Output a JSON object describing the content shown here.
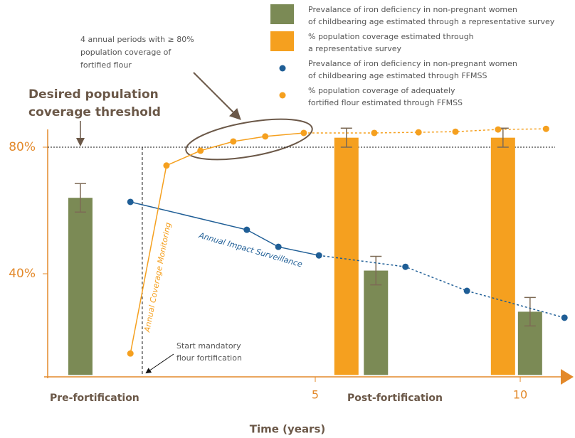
{
  "chart_data": {
    "type": "combo",
    "x_label": "Time (years)",
    "xlim": [
      -1.5,
      11.3
    ],
    "xticks": [
      5,
      10
    ],
    "ylim": [
      8,
      88
    ],
    "yticks": [
      {
        "value": 80,
        "label": "80%"
      },
      {
        "value": 40,
        "label": "40%"
      }
    ],
    "regions": [
      "Pre-fortification",
      "Post-fortification"
    ],
    "threshold": {
      "value": 80,
      "label": [
        "Desired population",
        "coverage threshold"
      ]
    },
    "start": {
      "x": 0.78,
      "label": [
        "Start mandatory",
        "flour fortification"
      ]
    },
    "highlight": [
      "4 annual periods with ≥ 80%",
      "population coverage of",
      "fortified flour"
    ],
    "series": [
      {
        "name": [
          "Prevalance of iron deficiency in non-pregnant women",
          "of childbearing age estimated through a representative survey"
        ],
        "type": "bar",
        "color": "#7b8a55",
        "x": [
          -0.73,
          6.48,
          10.24
        ],
        "values": [
          64,
          41,
          28
        ],
        "errors": [
          4.5,
          4.5,
          4.5
        ]
      },
      {
        "name": [
          "% population coverage estimated through",
          "a representative survey"
        ],
        "type": "bar",
        "color": "#f5a01f",
        "x": [
          5.76,
          9.58
        ],
        "values": [
          83,
          83
        ],
        "errors": [
          3,
          3
        ]
      },
      {
        "name": [
          "Prevalance of iron deficiency in non-pregnant women",
          "of childbearing age estimated through FFMSS"
        ],
        "type": "line",
        "color": "#1f5e96",
        "line_label": "Annual Impact Surveillance",
        "solid_until": 5.1,
        "x": [
          0.49,
          3.33,
          4.1,
          5.09,
          7.2,
          8.7,
          11.08
        ],
        "values": [
          62.7,
          53.9,
          48.5,
          45.8,
          42.2,
          34.6,
          26.1
        ]
      },
      {
        "name": [
          "% population coverage of adequately",
          "fortified flour estimated through FFMSS"
        ],
        "type": "line",
        "color": "#f5a01f",
        "line_label": "Annual Coverage Monitoring",
        "solid_until": 4.8,
        "x": [
          0.49,
          1.37,
          2.2,
          3.0,
          3.78,
          4.72,
          6.44,
          7.52,
          8.42,
          9.46,
          10.63
        ],
        "values": [
          14.8,
          74.2,
          78.9,
          81.8,
          83.4,
          84.5,
          84.5,
          84.7,
          84.9,
          85.6,
          85.8
        ]
      }
    ]
  }
}
